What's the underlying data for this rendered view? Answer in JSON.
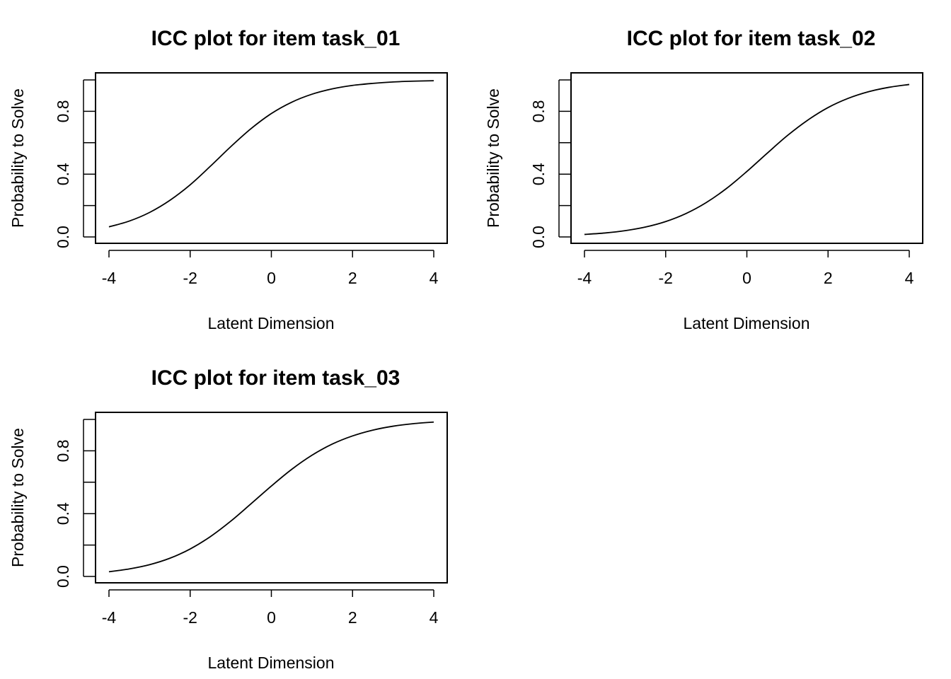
{
  "chart_data": [
    {
      "type": "line",
      "title": "ICC plot for item  task_01",
      "xlabel": "Latent Dimension",
      "ylabel": "Probability to Solve",
      "xlim": [
        -4,
        4
      ],
      "ylim": [
        0,
        1
      ],
      "xticks": [
        -4,
        -2,
        0,
        2,
        4
      ],
      "xtick_labels": [
        "-4",
        "-2",
        "0",
        "2",
        "4"
      ],
      "yticks": [
        0,
        0.2,
        0.4,
        0.6,
        0.8,
        1.0
      ],
      "ytick_labels": [
        "0.0",
        "",
        "0.4",
        "",
        "0.8",
        ""
      ],
      "grid": false,
      "series": [
        {
          "x": [
            -4,
            -3.5,
            -3,
            -2.5,
            -2,
            -1.5,
            -1,
            -0.5,
            0,
            0.5,
            1,
            1.5,
            2,
            2.5,
            3,
            3.5,
            4
          ],
          "y": [
            0.064,
            0.101,
            0.156,
            0.233,
            0.332,
            0.451,
            0.575,
            0.69,
            0.786,
            0.858,
            0.909,
            0.943,
            0.965,
            0.978,
            0.987,
            0.992,
            0.995
          ]
        }
      ]
    },
    {
      "type": "line",
      "title": "ICC plot for item  task_02",
      "xlabel": "Latent Dimension",
      "ylabel": "Probability to Solve",
      "xlim": [
        -4,
        4
      ],
      "ylim": [
        0,
        1
      ],
      "xticks": [
        -4,
        -2,
        0,
        2,
        4
      ],
      "xtick_labels": [
        "-4",
        "-2",
        "0",
        "2",
        "4"
      ],
      "yticks": [
        0,
        0.2,
        0.4,
        0.6,
        0.8,
        1.0
      ],
      "ytick_labels": [
        "0.0",
        "",
        "0.4",
        "",
        "0.8",
        ""
      ],
      "grid": false,
      "series": [
        {
          "x": [
            -4,
            -3.5,
            -3,
            -2.5,
            -2,
            -1.5,
            -1,
            -0.5,
            0,
            0.5,
            1,
            1.5,
            2,
            2.5,
            3,
            3.5,
            4
          ],
          "y": [
            0.016,
            0.025,
            0.04,
            0.063,
            0.098,
            0.149,
            0.219,
            0.309,
            0.417,
            0.533,
            0.646,
            0.744,
            0.824,
            0.883,
            0.925,
            0.953,
            0.971
          ]
        }
      ]
    },
    {
      "type": "line",
      "title": "ICC plot for item  task_03",
      "xlabel": "Latent Dimension",
      "ylabel": "Probability to Solve",
      "xlim": [
        -4,
        4
      ],
      "ylim": [
        0,
        1
      ],
      "xticks": [
        -4,
        -2,
        0,
        2,
        4
      ],
      "xtick_labels": [
        "-4",
        "-2",
        "0",
        "2",
        "4"
      ],
      "yticks": [
        0,
        0.2,
        0.4,
        0.6,
        0.8,
        1.0
      ],
      "ytick_labels": [
        "0.0",
        "",
        "0.4",
        "",
        "0.8",
        ""
      ],
      "grid": false,
      "series": [
        {
          "x": [
            -4,
            -3.5,
            -3,
            -2.5,
            -2,
            -1.5,
            -1,
            -0.5,
            0,
            0.5,
            1,
            1.5,
            2,
            2.5,
            3,
            3.5,
            4
          ],
          "y": [
            0.03,
            0.048,
            0.075,
            0.116,
            0.175,
            0.254,
            0.352,
            0.463,
            0.576,
            0.682,
            0.772,
            0.843,
            0.895,
            0.932,
            0.957,
            0.973,
            0.983
          ]
        }
      ]
    }
  ]
}
